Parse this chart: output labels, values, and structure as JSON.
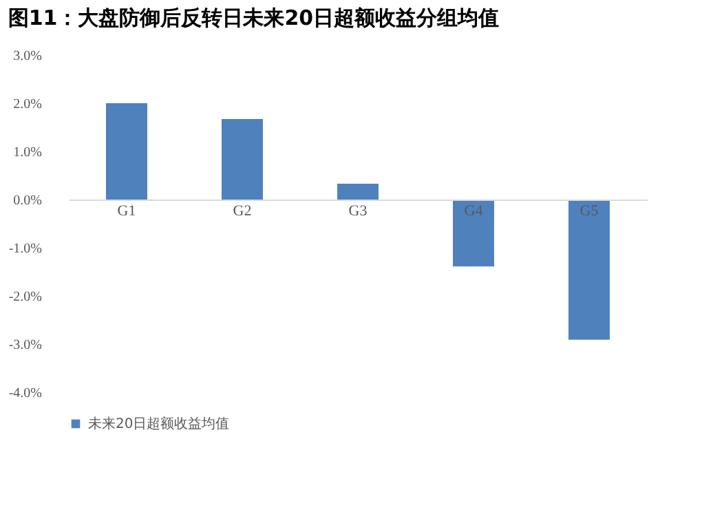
{
  "chart_data": {
    "type": "bar",
    "title": "图11：大盘防御后反转日未来20日超额收益分组均值",
    "categories": [
      "G1",
      "G2",
      "G3",
      "G4",
      "G5"
    ],
    "series": [
      {
        "name": "未来20日超额收益均值",
        "color": "#4f81bd",
        "values": [
          2.0,
          1.67,
          0.33,
          -1.39,
          -2.91
        ]
      }
    ],
    "ylim": [
      -4,
      3
    ],
    "yticks": [
      {
        "value": 3,
        "label": "3.0%"
      },
      {
        "value": 2,
        "label": "2.0%"
      },
      {
        "value": 1,
        "label": "1.0%"
      },
      {
        "value": 0,
        "label": "0.0%"
      },
      {
        "value": -1,
        "label": "-1.0%"
      },
      {
        "value": -2,
        "label": "-2.0%"
      },
      {
        "value": -3,
        "label": "-3.0%"
      },
      {
        "value": -4,
        "label": "-4.0%"
      }
    ],
    "grid": false,
    "legend": "bottom"
  }
}
